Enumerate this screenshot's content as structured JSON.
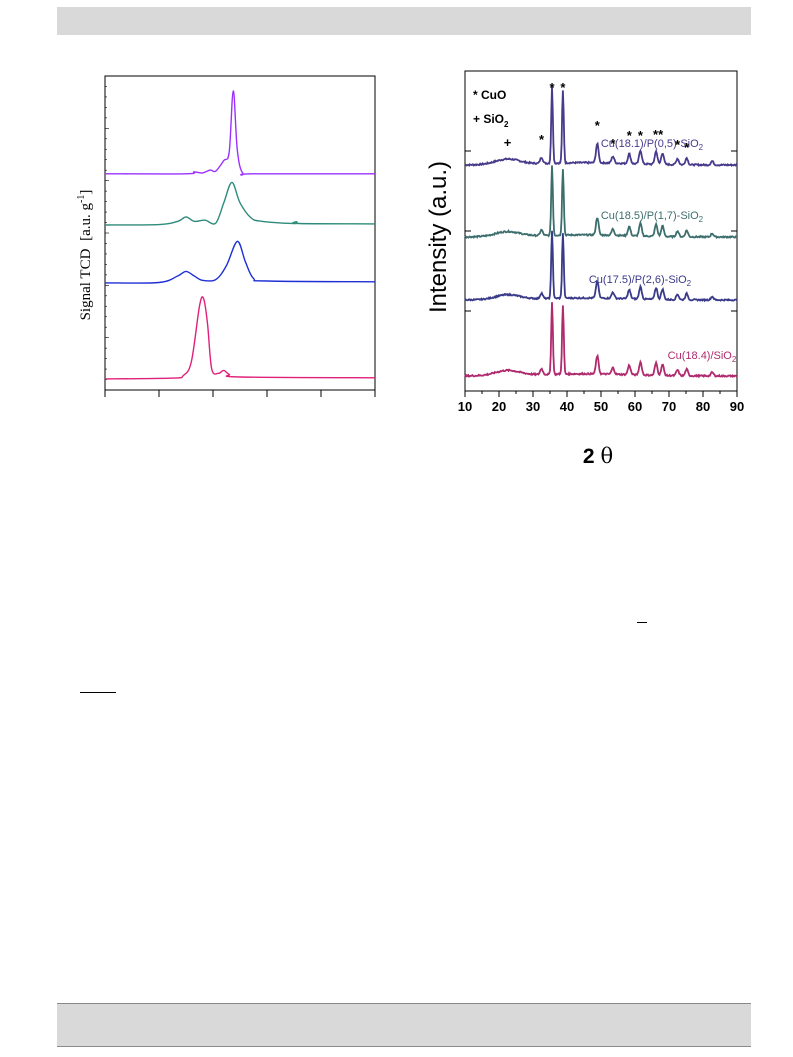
{
  "chart_data": [
    {
      "type": "line",
      "ylabel": "Signal TCD",
      "ylabel_unit": "[a.u. g",
      "ylabel_unit_sup": "-1",
      "ylabel_unit_end": "]",
      "xlim": [
        0,
        100
      ],
      "colors": [
        "#9b30ff",
        "#2e8b7a",
        "#1f2fd6",
        "#e0207a"
      ],
      "series": [
        {
          "values": [
            [
              0,
              0.6
            ],
            [
              30,
              0.6
            ],
            [
              33,
              1.1
            ],
            [
              36,
              0.8
            ],
            [
              39,
              1.6
            ],
            [
              41,
              1.3
            ],
            [
              44,
              4.2
            ],
            [
              46,
              6.5
            ],
            [
              47.5,
              23
            ],
            [
              49,
              7
            ],
            [
              51,
              0.8
            ],
            [
              55,
              0.6
            ],
            [
              100,
              0.6
            ]
          ]
        },
        {
          "values": [
            [
              0,
              0
            ],
            [
              20,
              0.1
            ],
            [
              27,
              1.0
            ],
            [
              30,
              2.2
            ],
            [
              33,
              1.0
            ],
            [
              37,
              1.3
            ],
            [
              41,
              0.5
            ],
            [
              44,
              6
            ],
            [
              47,
              11.5
            ],
            [
              50,
              6
            ],
            [
              54,
              2.0
            ],
            [
              58,
              1.0
            ],
            [
              70,
              0.4
            ],
            [
              71,
              0.9
            ],
            [
              72,
              0.4
            ],
            [
              100,
              0.3
            ]
          ]
        },
        {
          "values": [
            [
              0,
              0.3
            ],
            [
              20,
              0.4
            ],
            [
              27,
              2.2
            ],
            [
              30,
              3.4
            ],
            [
              33,
              2.2
            ],
            [
              36,
              1.0
            ],
            [
              41,
              1.2
            ],
            [
              45,
              5
            ],
            [
              49,
              11.5
            ],
            [
              52,
              6
            ],
            [
              55,
              1.5
            ],
            [
              60,
              0.8
            ],
            [
              100,
              0.6
            ]
          ]
        },
        {
          "values": [
            [
              0,
              0.3
            ],
            [
              25,
              0.5
            ],
            [
              29,
              1.2
            ],
            [
              32,
              5
            ],
            [
              35,
              20
            ],
            [
              36.5,
              22
            ],
            [
              38,
              15
            ],
            [
              39.5,
              3
            ],
            [
              42,
              1.8
            ],
            [
              44,
              2.6
            ],
            [
              46,
              1.5
            ],
            [
              50,
              0.8
            ],
            [
              100,
              0.6
            ]
          ]
        }
      ]
    },
    {
      "type": "line",
      "xlabel": "2",
      "xlabel_symbol": "θ",
      "ylabel": "Intensity (a.u.)",
      "xlim": [
        10,
        90
      ],
      "xticks": [
        10,
        20,
        30,
        40,
        50,
        60,
        70,
        80,
        90
      ],
      "legend_markers": [
        {
          "symbol": "*",
          "text": "CuO"
        },
        {
          "symbol": "+",
          "text": "SiO",
          "sub": "2"
        }
      ],
      "peak_markers": [
        {
          "symbol": "+",
          "x": 22.5
        },
        {
          "symbol": "*",
          "x": 32.5
        },
        {
          "symbol": "*",
          "x": 35.6
        },
        {
          "symbol": "*",
          "x": 38.8
        },
        {
          "symbol": "*",
          "x": 48.9
        },
        {
          "symbol": "*",
          "x": 53.5
        },
        {
          "symbol": "*",
          "x": 58.3
        },
        {
          "symbol": "*",
          "x": 61.6
        },
        {
          "symbol": "**",
          "x": 66.8
        },
        {
          "symbol": "*",
          "x": 72.5
        },
        {
          "symbol": "*",
          "x": 75.2
        }
      ],
      "series": [
        {
          "name": "Cu(18.1)/P(0,5)-SiO",
          "name_sub": "2",
          "color": "#4a3a8c"
        },
        {
          "name": "Cu(18.5)/P(1,7)-SiO",
          "name_sub": "2",
          "color": "#3d6e6e"
        },
        {
          "name": "Cu(17.5)/P(2,6)-SiO",
          "name_sub": "2",
          "color": "#3a3a8a"
        },
        {
          "name": "Cu(18.4)/SiO",
          "name_sub": "2",
          "color": "#b02a6e"
        }
      ],
      "peaks": [
        [
          32.5,
          0.08
        ],
        [
          35.6,
          1.0
        ],
        [
          38.8,
          0.95
        ],
        [
          48.9,
          0.25
        ],
        [
          53.5,
          0.09
        ],
        [
          58.3,
          0.13
        ],
        [
          61.6,
          0.18
        ],
        [
          66.2,
          0.17
        ],
        [
          68.1,
          0.15
        ],
        [
          72.5,
          0.08
        ],
        [
          75.2,
          0.09
        ],
        [
          82.7,
          0.05
        ]
      ]
    }
  ]
}
